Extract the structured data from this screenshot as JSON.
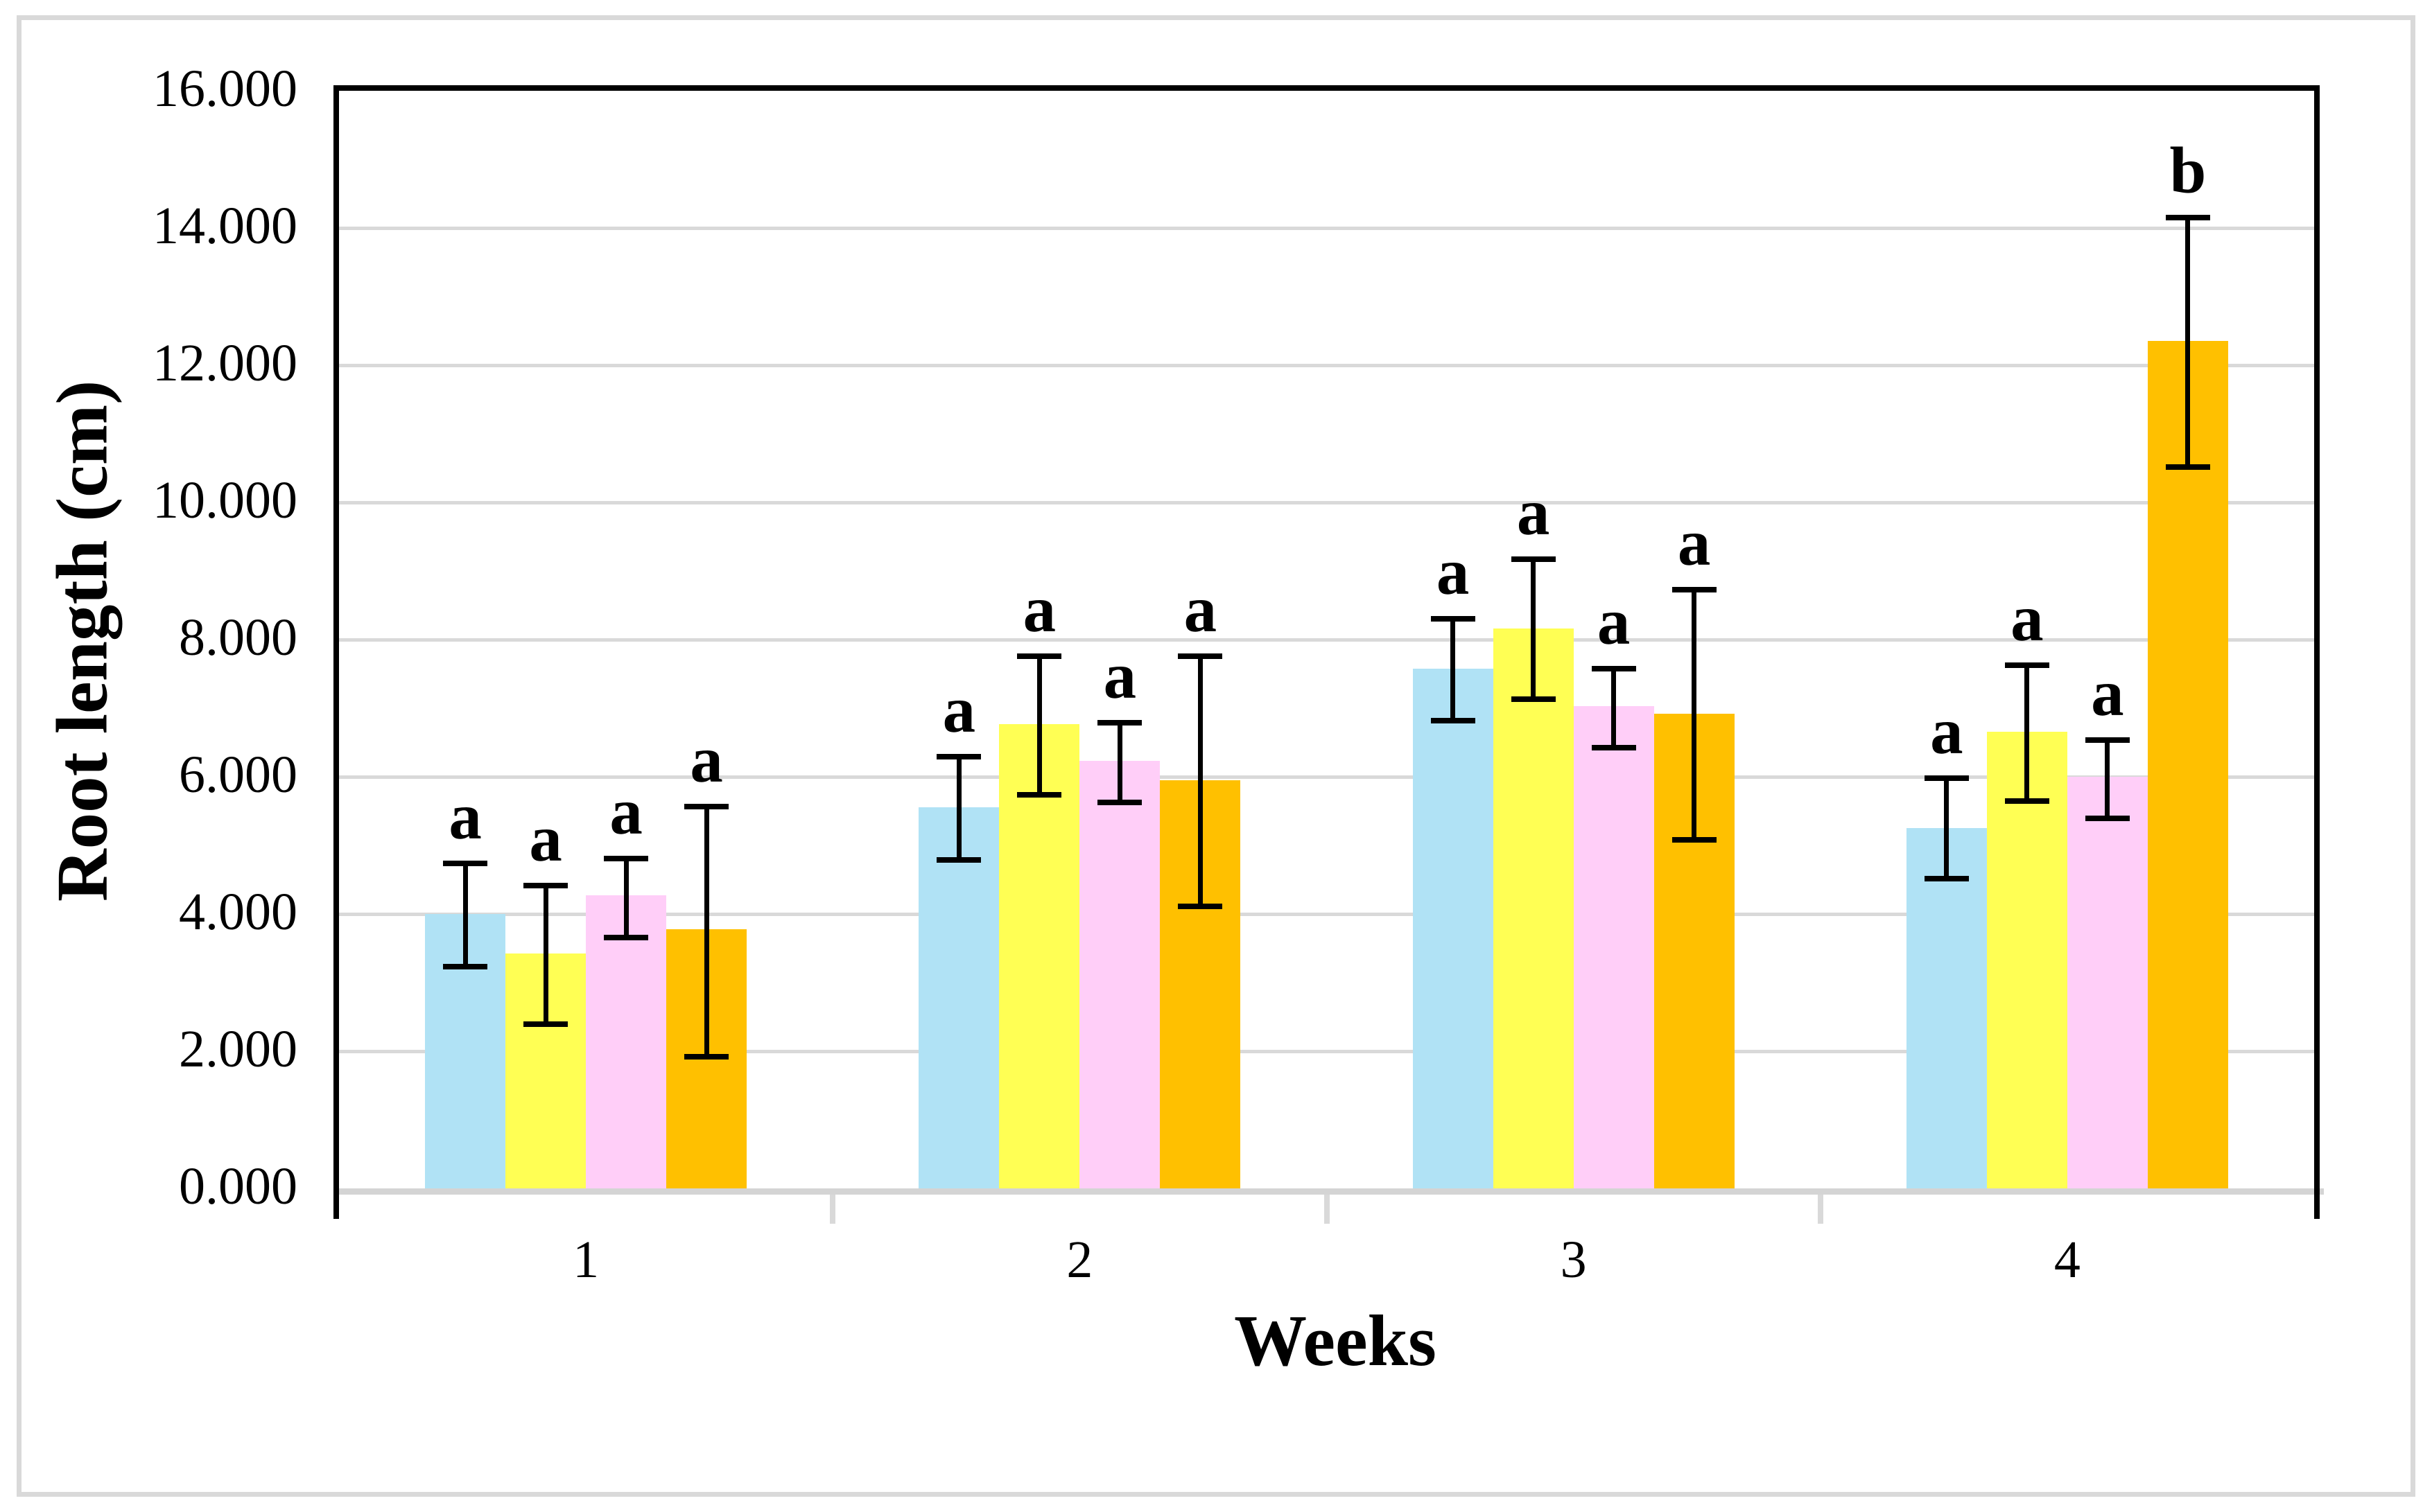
{
  "chart_data": {
    "type": "bar",
    "title": "",
    "xlabel": "Weeks",
    "ylabel": "Root length (cm)",
    "categories": [
      "1",
      "2",
      "3",
      "4"
    ],
    "y_ticks": [
      "0.000",
      "2.000",
      "4.000",
      "6.000",
      "8.000",
      "10.000",
      "12.000",
      "14.000",
      "16.000"
    ],
    "ylim": [
      0,
      16
    ],
    "grid": "horizontal",
    "legend": "none",
    "error_bars": true,
    "series": [
      {
        "name": "light-blue",
        "color": "#B0E2F5",
        "values": [
          4.0,
          5.56,
          7.58,
          5.25
        ],
        "error_low": [
          3.23,
          4.79,
          6.82,
          4.52
        ],
        "error_high": [
          4.74,
          6.29,
          8.3,
          5.98
        ],
        "letters": [
          "a",
          "a",
          "a",
          "a"
        ]
      },
      {
        "name": "yellow",
        "color": "#FFFF54",
        "values": [
          3.42,
          6.77,
          8.16,
          6.66
        ],
        "error_low": [
          2.39,
          5.74,
          7.13,
          5.65
        ],
        "error_high": [
          4.41,
          7.76,
          9.17,
          7.63
        ],
        "letters": [
          "a",
          "a",
          "a",
          "a"
        ]
      },
      {
        "name": "pink",
        "color": "#FFCEF8",
        "values": [
          4.27,
          6.23,
          7.03,
          6.0
        ],
        "error_low": [
          3.66,
          5.63,
          6.42,
          5.39
        ],
        "error_high": [
          4.81,
          6.79,
          7.58,
          6.54
        ],
        "letters": [
          "a",
          "a",
          "a",
          "a"
        ]
      },
      {
        "name": "orange",
        "color": "#FFC000",
        "values": [
          3.78,
          5.95,
          6.92,
          12.35
        ],
        "error_low": [
          1.92,
          4.11,
          5.08,
          10.52
        ],
        "error_high": [
          5.57,
          7.76,
          8.73,
          14.15
        ],
        "letters": [
          "a",
          "a",
          "a",
          "b"
        ]
      }
    ],
    "colors": {
      "gridline": "#d9d9d9",
      "axis_border": "#000000",
      "baseline": "#d4d4d4",
      "figure_border": "#d9d9d9",
      "background": "#ffffff"
    }
  }
}
